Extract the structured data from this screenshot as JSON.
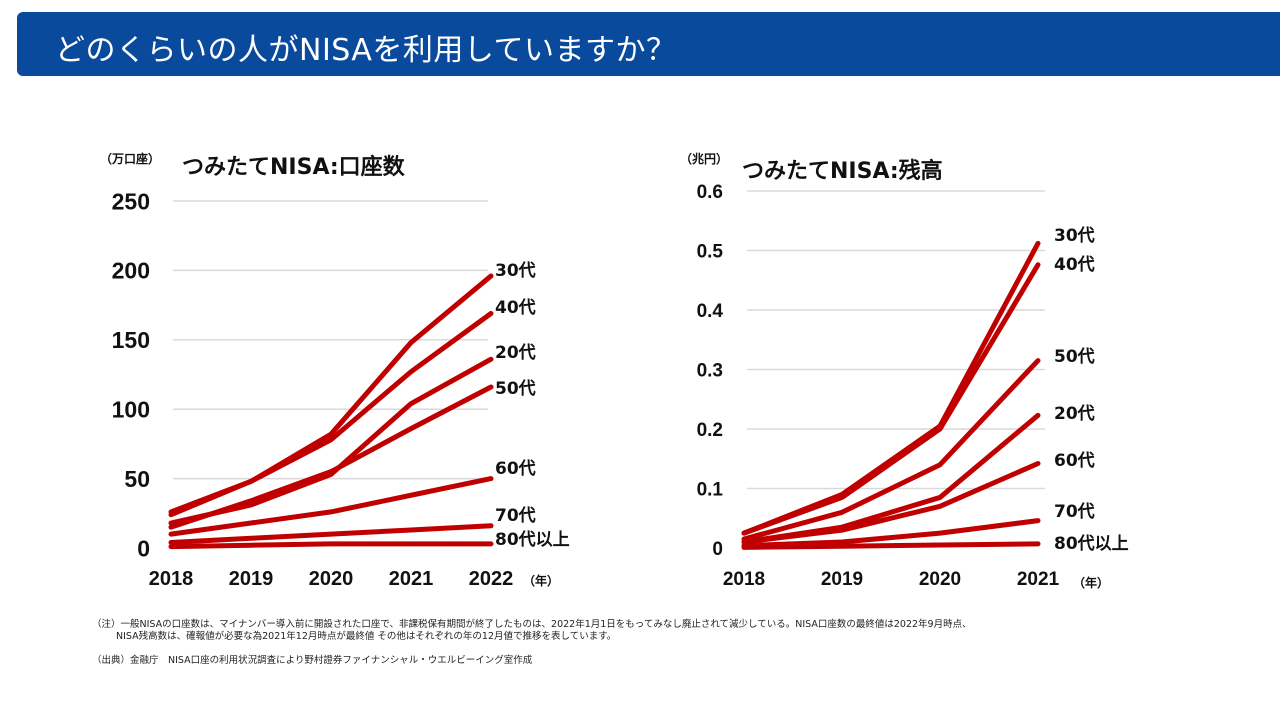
{
  "header": {
    "title": "どのくらいの人がNISAを利用していますか？"
  },
  "notes": {
    "line1": "（注）一般NISAの口座数は、マイナンバー導入前に開設された口座で、非課税保有期間が終了したものは、2022年1月1日をもってみなし廃止されて減少している。NISA口座数の最終値は2022年9月時点、",
    "line2": "NISA残高数は、確報値が必要な為2021年12月時点が最終値 その他はそれぞれの年の12月値で推移を表しています。",
    "source": "（出典）金融庁　NISA口座の利用状況調査により野村證券ファイナンシャル・ウエルビーイング室作成"
  },
  "colors": {
    "header_bg": "#0a4a9c",
    "line": "#c00000",
    "grid": "#d9d9d9"
  },
  "chart_data": [
    {
      "type": "line",
      "title": "つみたてNISA:口座数",
      "yunit": "（万口座）",
      "xunit": "（年）",
      "categories": [
        "2018",
        "2019",
        "2020",
        "2021",
        "2022"
      ],
      "ylim": [
        0,
        250
      ],
      "yticks": [
        "0",
        "50",
        "100",
        "150",
        "200",
        "250"
      ],
      "grid": true,
      "series": [
        {
          "name": "30代",
          "values": [
            26,
            48,
            82,
            148,
            196
          ]
        },
        {
          "name": "40代",
          "values": [
            24,
            48,
            78,
            127,
            169
          ]
        },
        {
          "name": "20代",
          "values": [
            18,
            31,
            53,
            104,
            136
          ]
        },
        {
          "name": "50代",
          "values": [
            15,
            34,
            55,
            86,
            116
          ]
        },
        {
          "name": "60代",
          "values": [
            10,
            18,
            26,
            38,
            50
          ]
        },
        {
          "name": "70代",
          "values": [
            4,
            7,
            10,
            13,
            16
          ]
        },
        {
          "name": "80代以上",
          "values": [
            1,
            2,
            3,
            3,
            3
          ]
        }
      ]
    },
    {
      "type": "line",
      "title": "つみたてNISA:残高",
      "yunit": "（兆円）",
      "xunit": "（年）",
      "categories": [
        "2018",
        "2019",
        "2020",
        "2021"
      ],
      "ylim": [
        0,
        0.6
      ],
      "yticks": [
        "0",
        "0.1",
        "0.2",
        "0.3",
        "0.4",
        "0.5",
        "0.6"
      ],
      "grid": true,
      "series": [
        {
          "name": "30代",
          "values": [
            0.025,
            0.09,
            0.205,
            0.512
          ]
        },
        {
          "name": "40代",
          "values": [
            0.025,
            0.085,
            0.2,
            0.476
          ]
        },
        {
          "name": "50代",
          "values": [
            0.015,
            0.06,
            0.14,
            0.315
          ]
        },
        {
          "name": "20代",
          "values": [
            0.01,
            0.035,
            0.085,
            0.223
          ]
        },
        {
          "name": "60代",
          "values": [
            0.01,
            0.03,
            0.07,
            0.142
          ]
        },
        {
          "name": "70代",
          "values": [
            0.004,
            0.01,
            0.025,
            0.046
          ]
        },
        {
          "name": "80代以上",
          "values": [
            0.001,
            0.003,
            0.005,
            0.007
          ]
        }
      ]
    }
  ]
}
